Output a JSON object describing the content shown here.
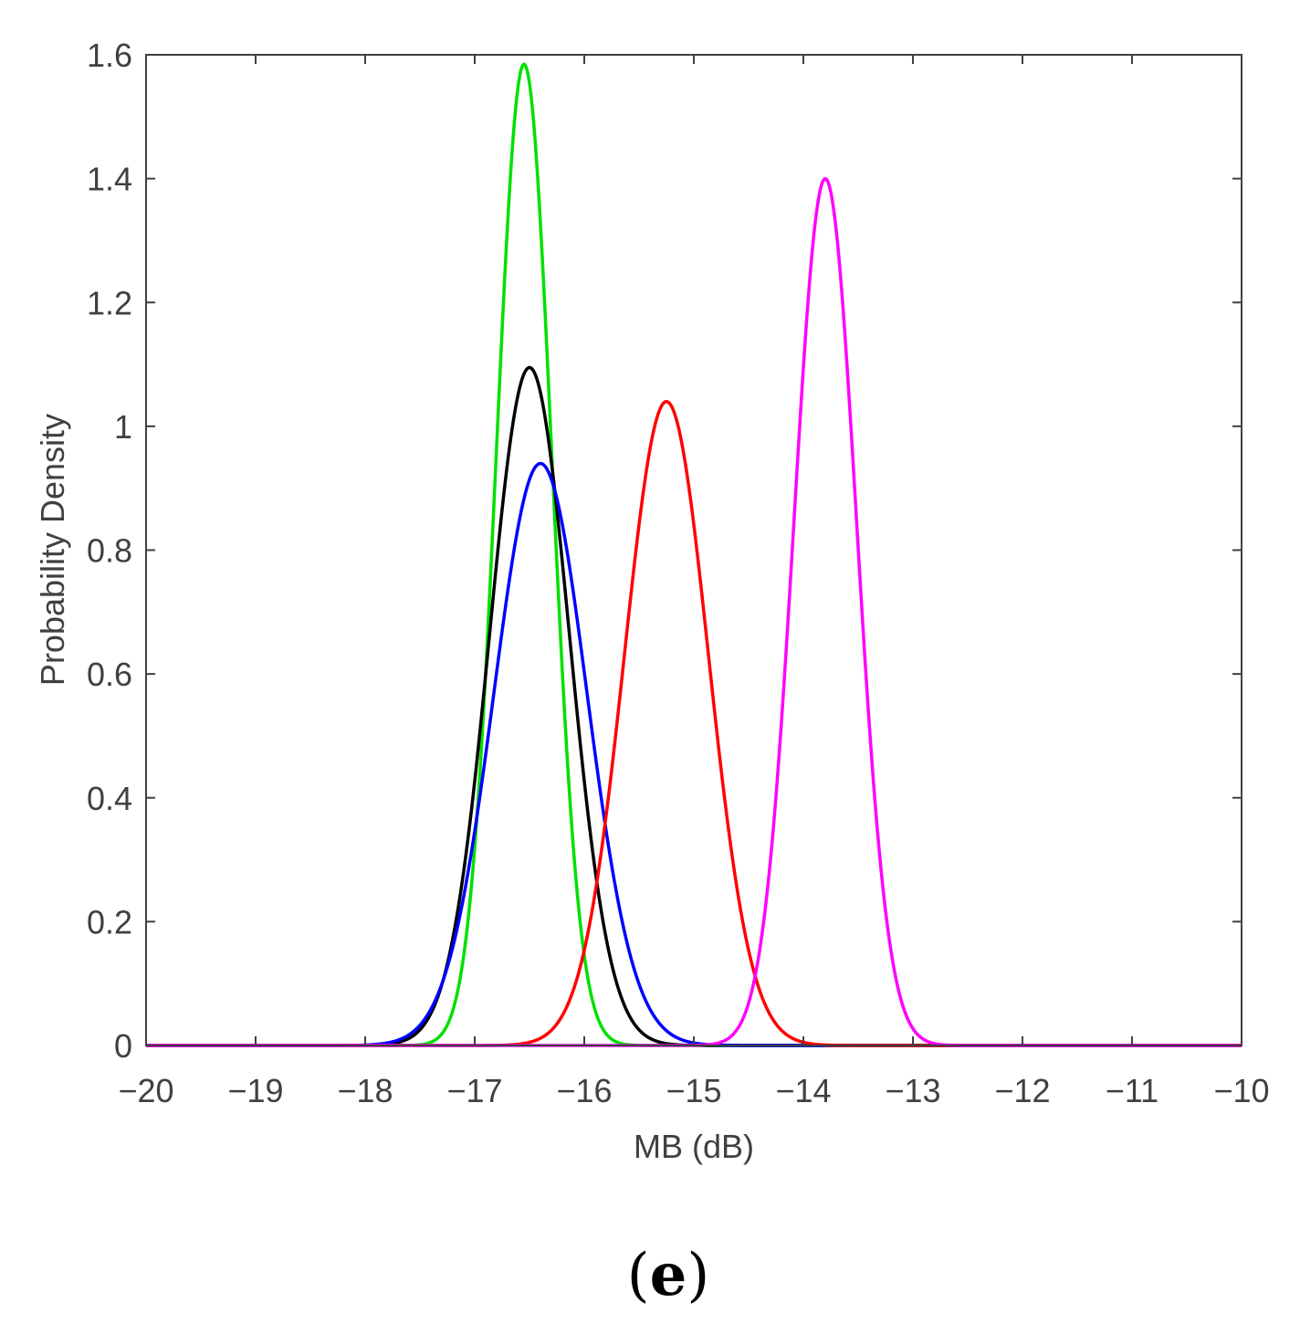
{
  "chart_data": {
    "type": "line",
    "title": "",
    "xlabel": "MB (dB)",
    "ylabel": "Probability Density",
    "xlim": [
      -20,
      -10
    ],
    "ylim": [
      0,
      1.6
    ],
    "x_ticks": [
      -20,
      -19,
      -18,
      -17,
      -16,
      -15,
      -14,
      -13,
      -12,
      -11,
      -10
    ],
    "x_tick_labels": [
      "−20",
      "−19",
      "−18",
      "−17",
      "−16",
      "−15",
      "−14",
      "−13",
      "−12",
      "−11",
      "−10"
    ],
    "y_ticks": [
      0,
      0.2,
      0.4,
      0.6,
      0.8,
      1,
      1.2,
      1.4,
      1.6
    ],
    "y_tick_labels": [
      "0",
      "0.2",
      "0.4",
      "0.6",
      "0.8",
      "1",
      "1.2",
      "1.4",
      "1.6"
    ],
    "grid": false,
    "legend": "none",
    "series": [
      {
        "color": "#00e000",
        "distribution": "normal",
        "mean": -16.55,
        "peak": 1.585
      },
      {
        "color": "#000000",
        "distribution": "normal",
        "mean": -16.5,
        "peak": 1.095
      },
      {
        "color": "#0000ff",
        "distribution": "normal",
        "mean": -16.4,
        "peak": 0.94
      },
      {
        "color": "#ff0000",
        "distribution": "normal",
        "mean": -15.25,
        "peak": 1.04
      },
      {
        "color": "#ff00ff",
        "distribution": "normal",
        "mean": -13.8,
        "peak": 1.4
      }
    ]
  },
  "panel_label": {
    "open": "(",
    "letter": "e",
    "close": ")"
  }
}
